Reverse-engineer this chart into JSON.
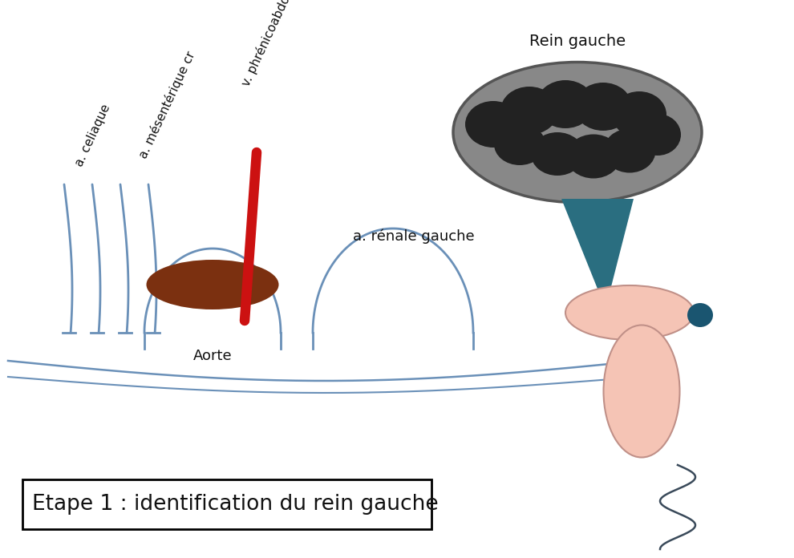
{
  "caption": "Etape 1 : identification du rein gauche",
  "label_rein_gauche": "Rein gauche",
  "label_aorte": "Aorte",
  "label_a_renale": "a. rénale gauche",
  "label_celiaque": "a. celiaque",
  "label_mesenterique": "a. mésentérique cr",
  "label_phrenicoabdominale": "v. phrénicoabdominale",
  "bg_color": "#ffffff",
  "kidney_outer_color": "#888888",
  "kidney_inner_color": "#222222",
  "kidney_border_color": "#555555",
  "aorte_color": "#7B3010",
  "vessel_red_color": "#cc1111",
  "adrenal_teal_color": "#2a6e80",
  "suprarenal_pink_color": "#f5c4b5",
  "suprarenal_border_color": "#c09088",
  "suprarenal_dot_color": "#1a5570",
  "rib_color": "#6a90b8",
  "arch_color": "#6a90b8",
  "spine_color": "#3a4a5a",
  "text_color": "#111111"
}
